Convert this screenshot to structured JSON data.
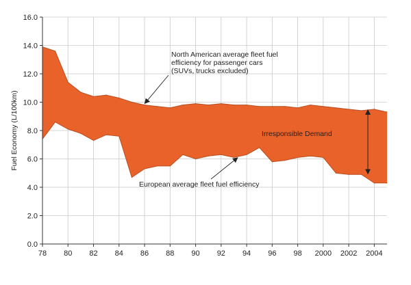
{
  "chart_data": {
    "type": "area",
    "title": "",
    "xlabel": "",
    "ylabel": "Fuel Economy (L/100km)",
    "xlim": [
      1978,
      2005
    ],
    "ylim": [
      0,
      16
    ],
    "grid": true,
    "legend": "none",
    "x_ticks": [
      1978,
      1980,
      1982,
      1984,
      1986,
      1988,
      1990,
      1992,
      1994,
      1996,
      1998,
      2000,
      2002,
      2004
    ],
    "x_tick_labels": [
      "78",
      "80",
      "82",
      "84",
      "86",
      "88",
      "90",
      "92",
      "94",
      "96",
      "98",
      "2000",
      "2002",
      "2004"
    ],
    "y_ticks": [
      0,
      2,
      4,
      6,
      8,
      10,
      12,
      14,
      16
    ],
    "y_tick_labels": [
      "0.0",
      "2.0",
      "4.0",
      "6.0",
      "8.0",
      "10.0",
      "12.0",
      "14.0",
      "16.0"
    ],
    "x": [
      1978,
      1979,
      1980,
      1981,
      1982,
      1983,
      1984,
      1985,
      1986,
      1987,
      1988,
      1989,
      1990,
      1991,
      1992,
      1993,
      1994,
      1995,
      1996,
      1997,
      1998,
      1999,
      2000,
      2001,
      2002,
      2003,
      2004,
      2005
    ],
    "series": [
      {
        "values": [
          13.9,
          13.6,
          11.4,
          10.7,
          10.4,
          10.5,
          10.3,
          10.0,
          9.8,
          9.7,
          9.6,
          9.8,
          9.9,
          9.8,
          9.9,
          9.8,
          9.8,
          9.7,
          9.7,
          9.7,
          9.6,
          9.8,
          9.7,
          9.6,
          9.5,
          9.4,
          9.5,
          9.3
        ]
      },
      {
        "values": [
          7.4,
          8.6,
          8.1,
          7.8,
          7.3,
          7.7,
          7.6,
          4.7,
          5.3,
          5.5,
          5.5,
          6.3,
          6.0,
          6.2,
          6.3,
          6.1,
          6.3,
          6.8,
          5.8,
          5.9,
          6.1,
          6.2,
          6.1,
          5.0,
          4.9,
          4.9,
          4.3,
          4.3
        ]
      }
    ],
    "colors": {
      "fill": "#e8622a",
      "edge": "#b84f22",
      "grid": "#c8c8c8",
      "axis": "#333333",
      "arrow": "#222222"
    },
    "annotations": [
      {
        "id": "north-american",
        "lines": [
          "North American average fleet fuel",
          "efficiency for passenger cars",
          "(SUVs, trucks excluded)"
        ],
        "points_to": {
          "x": 1986,
          "y": 9.8
        }
      },
      {
        "id": "european",
        "lines": [
          "European average fleet fuel efficiency"
        ],
        "points_to": {
          "x": 1993.3,
          "y": 6.2
        }
      },
      {
        "id": "irresponsible-demand",
        "lines": [
          "Irresponsible Demand"
        ],
        "span": {
          "x": 2003.5,
          "from": 4.9,
          "to": 9.5
        }
      }
    ]
  }
}
